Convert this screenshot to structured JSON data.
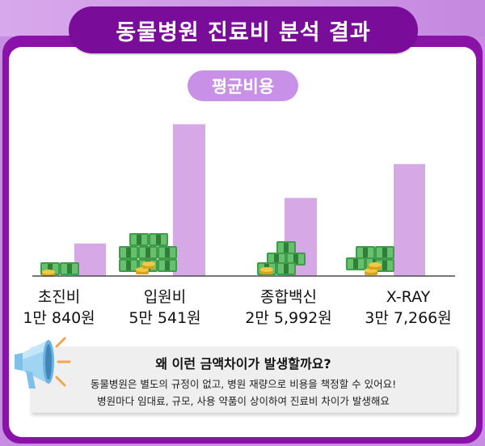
{
  "header": {
    "title": "동물병원 진료비 분석 결과"
  },
  "section": {
    "label": "평균비용"
  },
  "chart_data": {
    "type": "bar",
    "title": "평균비용",
    "categories": [
      "초진비",
      "입원비",
      "종합백신",
      "X-RAY"
    ],
    "value_labels": [
      "1만 840원",
      "5만 541원",
      "2만 5,992원",
      "3만 7,266원"
    ],
    "values": [
      10840,
      50541,
      25992,
      37266
    ],
    "ylim": [
      0,
      52000
    ],
    "bar_color": "#d6a9e6",
    "decoration": "money-stacks"
  },
  "info": {
    "heading": "왜 이런 금액차이가 발생할까요?",
    "line1": "동물병원은 별도의 규정이 없고, 병원 재량으로 비용을 책정할 수 있어요!",
    "line2": "병원마다 임대료, 규모, 사용 약품이 상이하여 진료비 차이가 발생해요"
  },
  "icons": {
    "megaphone": "megaphone-icon"
  }
}
